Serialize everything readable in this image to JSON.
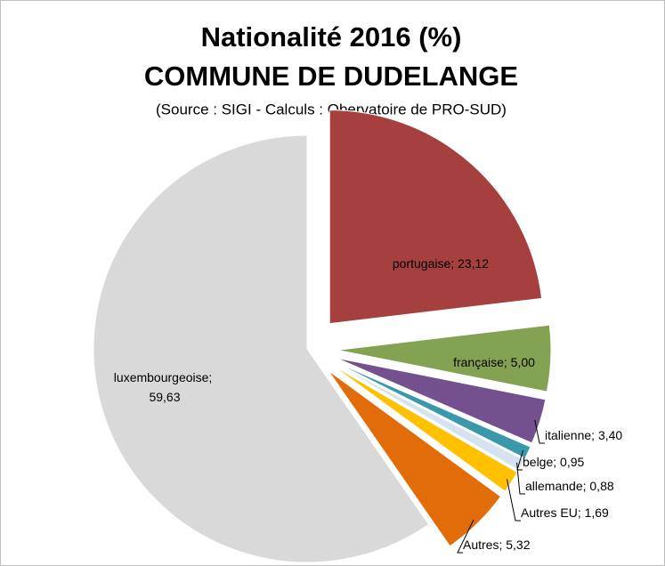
{
  "chart_data": {
    "type": "pie",
    "title": "Nationalité 2016 (%)",
    "subtitle": "COMMUNE DE DUDELANGE",
    "source": "(Source : SIGI - Calculs : Obervatoire de PRO-SUD)",
    "categories": [
      "portugaise",
      "française",
      "italienne",
      "belge",
      "allemande",
      "Autres EU",
      "Autres",
      "luxembourgeoise"
    ],
    "values": [
      23.12,
      5.0,
      3.4,
      0.95,
      0.88,
      1.69,
      5.32,
      59.63
    ],
    "value_labels": [
      "23,12",
      "5,00",
      "3,40",
      "0,95",
      "0,88",
      "1,69",
      "5,32",
      "59,63"
    ],
    "label_separator": "; ",
    "colors": [
      "#a5403f",
      "#84a352",
      "#74508f",
      "#3a98ac",
      "#d4e2f2",
      "#ffc000",
      "#e36c0a",
      "#d9d9d9"
    ]
  }
}
